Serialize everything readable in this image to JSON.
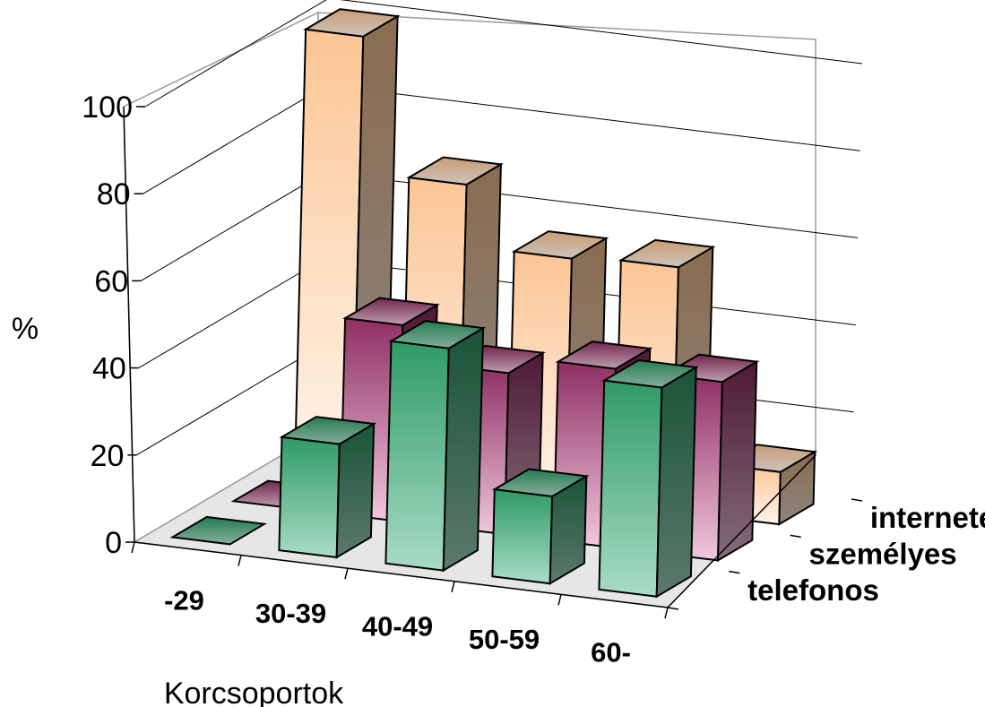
{
  "chart_data": {
    "type": "bar",
    "title": "",
    "xlabel": "Korcsoportok",
    "ylabel": "%",
    "ylim": [
      0,
      100
    ],
    "yticks": [
      0,
      20,
      40,
      60,
      80,
      100
    ],
    "categories": [
      "-29",
      "30-39",
      "40-49",
      "50-59",
      "60-"
    ],
    "series": [
      {
        "name": "telefonos",
        "values": [
          0,
          26,
          51,
          20,
          48
        ]
      },
      {
        "name": "személyes",
        "values": [
          0,
          45,
          37,
          41,
          41
        ]
      },
      {
        "name": "internetes",
        "values": [
          100,
          69,
          55,
          56,
          12
        ]
      }
    ],
    "colors": {
      "telefonos": [
        "#a8dcc6",
        "#2f9a66"
      ],
      "személyes": [
        "#f0c8dc",
        "#8e2f63"
      ],
      "internetes": [
        "#fff4ea",
        "#fcc594"
      ]
    },
    "grid": true,
    "legend": "series labels along depth axis on the right",
    "view": "3d-columns"
  }
}
